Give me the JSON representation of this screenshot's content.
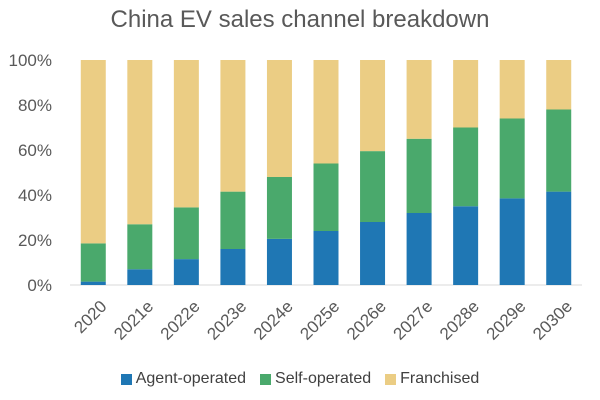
{
  "chart_data": {
    "type": "bar",
    "stacked": true,
    "title": "China EV sales channel breakdown",
    "xlabel": "",
    "ylabel": "",
    "ylim": [
      0,
      100
    ],
    "yticks": [
      "0%",
      "20%",
      "40%",
      "60%",
      "80%",
      "100%"
    ],
    "categories": [
      "2020",
      "2021e",
      "2022e",
      "2023e",
      "2024e",
      "2025e",
      "2026e",
      "2027e",
      "2028e",
      "2029e",
      "2030e"
    ],
    "series": [
      {
        "name": "Agent-operated",
        "color": "#1f77b4",
        "values": [
          1.5,
          7,
          11.5,
          16,
          20.5,
          24,
          28,
          32,
          35,
          38.5,
          41.5
        ]
      },
      {
        "name": "Self-operated",
        "color": "#4aa96c",
        "values": [
          17,
          20,
          23,
          25.5,
          27.5,
          30,
          31.5,
          33,
          35,
          35.5,
          36.5
        ]
      },
      {
        "name": "Franchised",
        "color": "#ebcd84",
        "values": [
          81.5,
          73,
          65.5,
          58.5,
          52,
          46,
          40.5,
          35,
          30,
          26,
          22
        ]
      }
    ],
    "grid": false,
    "legend_position": "bottom"
  }
}
